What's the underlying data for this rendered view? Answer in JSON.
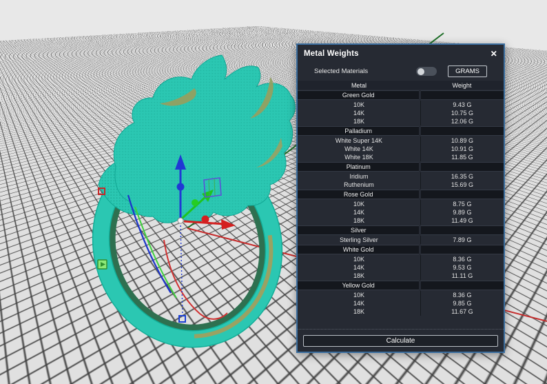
{
  "colors": {
    "viewport_bg": "#e8e8e8",
    "panel_border": "#3a6d9e",
    "panel_bg": "#262a33",
    "header_row_bg": "#1f232c",
    "section_row_bg": "#14171d",
    "selection_cyan": "#2bc7b2",
    "gizmo_x_red": "#d42020",
    "gizmo_y_green": "#1fc41f",
    "gizmo_z_blue": "#2038d4",
    "cplane_y_green": "#1e6f28"
  },
  "panel": {
    "title": "Metal Weights",
    "close_glyph": "✕",
    "selected_materials_label": "Selected Materials",
    "toggle_state": "off",
    "unit_button": "GRAMS",
    "calculate_button": "Calculate",
    "table": {
      "columns": [
        "Metal",
        "Weight"
      ],
      "sections": [
        {
          "name": "Green Gold",
          "rows": [
            [
              "10K",
              "9.43 G"
            ],
            [
              "14K",
              "10.75 G"
            ],
            [
              "18K",
              "12.06 G"
            ]
          ]
        },
        {
          "name": "Palladium",
          "rows": [
            [
              "White Super 14K",
              "10.89 G"
            ],
            [
              "White 14K",
              "10.91 G"
            ],
            [
              "White 18K",
              "11.85 G"
            ]
          ]
        },
        {
          "name": "Platinum",
          "rows": [
            [
              "Iridium",
              "16.35 G"
            ],
            [
              "Ruthenium",
              "15.69 G"
            ]
          ]
        },
        {
          "name": "Rose Gold",
          "rows": [
            [
              "10K",
              "8.75 G"
            ],
            [
              "14K",
              "9.89 G"
            ],
            [
              "18K",
              "11.49 G"
            ]
          ]
        },
        {
          "name": "Silver",
          "rows": [
            [
              "Sterling Silver",
              "7.89 G"
            ]
          ]
        },
        {
          "name": "White Gold",
          "rows": [
            [
              "10K",
              "8.36 G"
            ],
            [
              "14K",
              "9.53 G"
            ],
            [
              "18K",
              "11.11 G"
            ]
          ]
        },
        {
          "name": "Yellow Gold",
          "rows": [
            [
              "10K",
              "8.36 G"
            ],
            [
              "14K",
              "9.85 G"
            ],
            [
              "18K",
              "11.67 G"
            ]
          ]
        }
      ]
    }
  }
}
